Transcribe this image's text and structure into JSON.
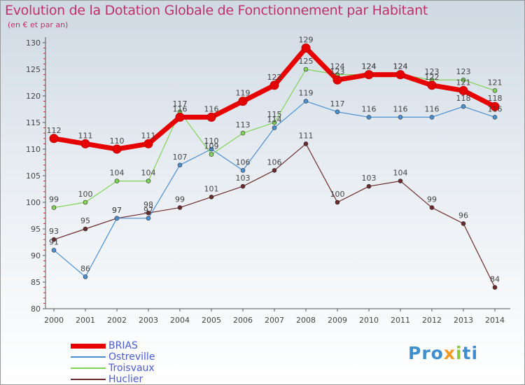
{
  "header": {
    "title": "Evolution de la Dotation Globale de Fonctionnement par Habitant",
    "subtitle": "(en € et par an)"
  },
  "logo": {
    "part1": "Pro",
    "part2": "x",
    "part3": "i",
    "part4": "ti"
  },
  "chart_data": {
    "type": "line",
    "title": "Evolution de la Dotation Globale de Fonctionnement par Habitant",
    "subtitle": "(en € et par an)",
    "xlabel": "",
    "ylabel": "",
    "ylim": [
      80,
      130
    ],
    "yticks": [
      80,
      85,
      90,
      95,
      100,
      105,
      110,
      115,
      120,
      125,
      130
    ],
    "grid": false,
    "legend_position": "bottom-left",
    "x": [
      "2000",
      "2001",
      "2002",
      "2003",
      "2004",
      "2005",
      "2006",
      "2007",
      "2008",
      "2009",
      "2010",
      "2011",
      "2012",
      "2013",
      "2014"
    ],
    "series": [
      {
        "name": "Huclier",
        "color": "#6a2a2a",
        "values": [
          93,
          95,
          97,
          98,
          99,
          101,
          103,
          106,
          111,
          100,
          103,
          104,
          99,
          96,
          84
        ],
        "labels": [
          "93",
          "95",
          "97",
          "98",
          "99",
          "101",
          "103",
          "106",
          "111",
          "100",
          "103",
          "104",
          "99",
          "96",
          "84"
        ]
      },
      {
        "name": "Ostreville",
        "color": "#4a8fd0",
        "values": [
          91,
          86,
          97,
          97,
          107,
          110,
          106,
          114,
          119,
          117,
          116,
          116,
          116,
          118,
          116
        ],
        "labels": [
          "91",
          "86",
          "97",
          "97",
          "107",
          "110",
          "106",
          "114",
          "119",
          "117",
          "116",
          "116",
          "116",
          "118",
          "116"
        ]
      },
      {
        "name": "Troisvaux",
        "color": "#80d455",
        "values": [
          99,
          100,
          104,
          104,
          117,
          109,
          113,
          115,
          125,
          124,
          124,
          124,
          123,
          123,
          121
        ],
        "labels": [
          "99",
          "100",
          "104",
          "104",
          "117",
          "109",
          "113",
          "115",
          "125",
          "124",
          "124",
          "124",
          "123",
          "123",
          "121"
        ]
      },
      {
        "name": "BRIAS",
        "color": "#e60000",
        "values": [
          112,
          111,
          110,
          111,
          116,
          116,
          119,
          122,
          129,
          123,
          124,
          124,
          122,
          121,
          118
        ],
        "labels": [
          "112",
          "111",
          "110",
          "111",
          "116",
          "116",
          "119",
          "122",
          "129",
          "123",
          "124",
          "124",
          "122",
          "121",
          "118"
        ]
      }
    ],
    "legend_order": [
      "BRIAS",
      "Ostreville",
      "Troisvaux",
      "Huclier"
    ]
  }
}
